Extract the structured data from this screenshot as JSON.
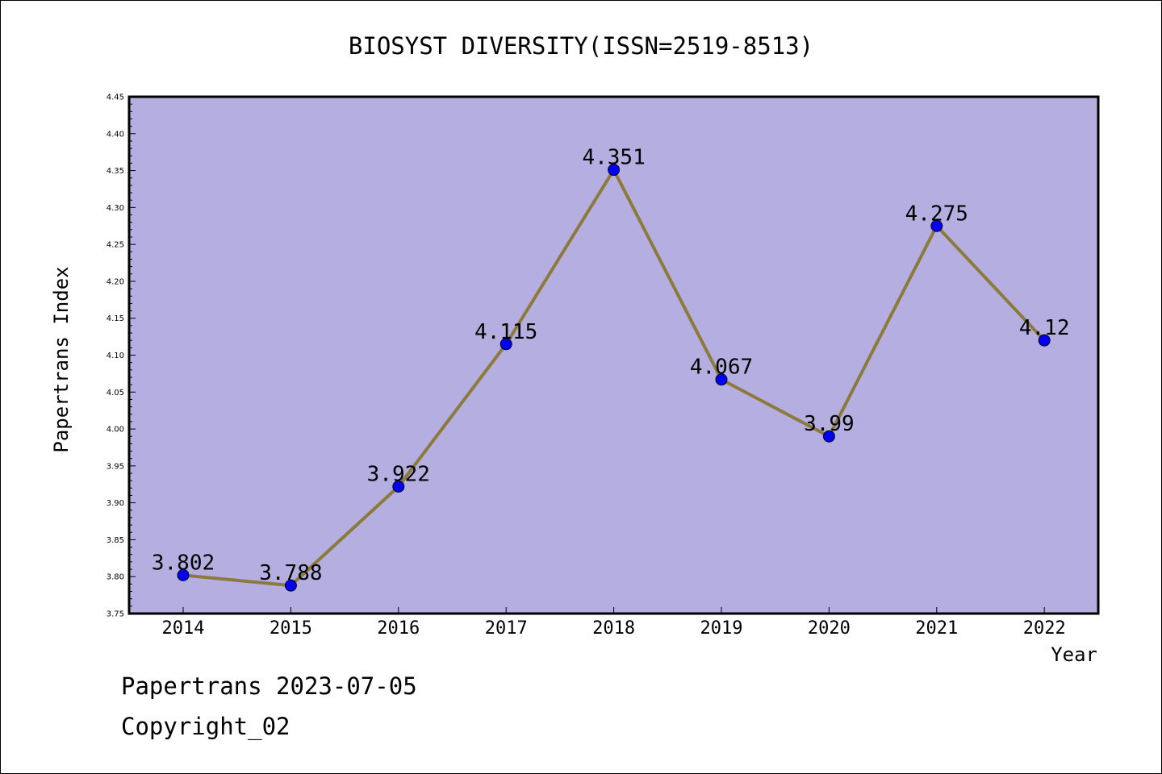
{
  "chart_data": {
    "type": "line",
    "title": "BIOSYST DIVERSITY(ISSN=2519-8513)",
    "xlabel": "Year",
    "ylabel": "Papertrans Index",
    "categories": [
      "2014",
      "2015",
      "2016",
      "2017",
      "2018",
      "2019",
      "2020",
      "2021",
      "2022"
    ],
    "series": [
      {
        "values": [
          3.802,
          3.788,
          3.922,
          4.115,
          4.351,
          4.067,
          3.99,
          4.275,
          4.12
        ],
        "data_labels": [
          "3.802",
          "3.788",
          "3.922",
          "4.115",
          "4.351",
          "4.067",
          "3.99",
          "4.275",
          "4.12"
        ]
      }
    ],
    "ylim": [
      3.75,
      4.45
    ],
    "yticks": [
      "3.75",
      "3.80",
      "3.85",
      "3.90",
      "3.95",
      "4.00",
      "4.05",
      "4.10",
      "4.15",
      "4.20",
      "4.25",
      "4.30",
      "4.35",
      "4.40",
      "4.45"
    ],
    "grid": false,
    "colors": {
      "plot_background": "#b5aee1",
      "line": "#8c7a3b",
      "marker": "#0000ee"
    }
  },
  "footer": {
    "line1": "Papertrans 2023-07-05",
    "line2": "Copyright_02"
  }
}
